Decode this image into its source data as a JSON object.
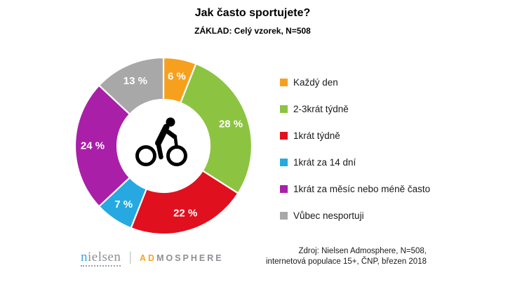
{
  "header": {
    "title": "Jak často sportujete?",
    "subtitle": "ZÁKLAD: Celý vzorek, N=508"
  },
  "chart_data": {
    "type": "pie",
    "subtype": "donut",
    "title": "Jak často sportujete?",
    "base_note": "ZÁKLAD: Celý vzorek, N=508",
    "start_angle_deg": 0,
    "direction": "clockwise",
    "legend_position": "right",
    "center_icon": "cyclist-icon",
    "categories": [
      "Každý den",
      "2-3krát týdně",
      "1krát týdně",
      "1krát za 14 dní",
      "1krát za měsíc nebo méně často",
      "Vůbec nesportuji"
    ],
    "values": [
      6,
      28,
      22,
      7,
      24,
      13
    ],
    "value_labels": [
      "6 %",
      "28 %",
      "22 %",
      "7 %",
      "24 %",
      "13 %"
    ],
    "colors": [
      "#F7A01E",
      "#8CC441",
      "#E1101E",
      "#26A9E0",
      "#A91FA8",
      "#A8A8A8"
    ]
  },
  "footer": {
    "logo": {
      "nielsen_first": "n",
      "nielsen_rest": "ielsen",
      "divider": "|",
      "admosphere_accent": "AD",
      "admosphere_rest": "MOSPHERE",
      "accent_color": "#F5A51F",
      "nielsen_blue": "#3EA3DC"
    },
    "source_line1": "Zdroj: Nielsen Admosphere, N=508,",
    "source_line2": "internetová populace 15+, ČNP, březen 2018"
  }
}
